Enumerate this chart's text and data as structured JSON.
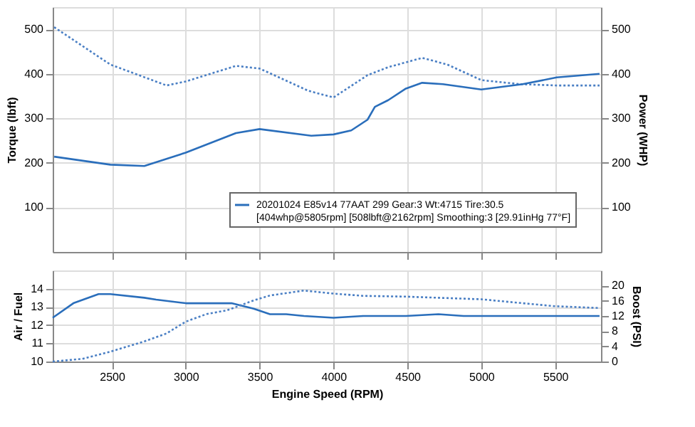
{
  "chart_data": [
    {
      "type": "line",
      "ylabel": "Torque (lbft)",
      "y2label": "Power (WHP)",
      "xlim": [
        2100,
        5810
      ],
      "xticks": [
        2500,
        3000,
        3500,
        4000,
        4500,
        5000,
        5500
      ],
      "ylim": [
        0,
        550
      ],
      "yticks": [
        100,
        200,
        300,
        400,
        500
      ],
      "y2lim": [
        0,
        550
      ],
      "y2ticks": [
        100,
        200,
        300,
        400,
        500
      ],
      "grid": true,
      "legend": "bottom right",
      "tick_labels": "y",
      "series": [
        {
          "color": "#4a7fc4",
          "line_style": "dotted",
          "x": [
            2110,
            2490,
            2870,
            3000,
            3340,
            3500,
            3830,
            4000,
            4230,
            4370,
            4600,
            4770,
            5000,
            5260,
            5510,
            5800
          ],
          "values": [
            505,
            421,
            374,
            383,
            418,
            412,
            362,
            347,
            397,
            415,
            436,
            421,
            386,
            377,
            374,
            374
          ]
        },
        {
          "name": "20201024 E85v14 77AAT 299 Gear:3 Wt:4715 Tire:30.5\n[404whp@5805rpm] [508lbft@2162rpm] Smoothing:3 [29.91inHg 77°F]",
          "color": "#2a6ebb",
          "line_style": "solid",
          "axis": "y2",
          "x": [
            2110,
            2490,
            2720,
            3000,
            3340,
            3500,
            3850,
            4000,
            4120,
            4230,
            4280,
            4370,
            4490,
            4600,
            4740,
            5000,
            5280,
            5510,
            5800
          ],
          "values": [
            214,
            196,
            193,
            223,
            267,
            276,
            261,
            264,
            273,
            297,
            326,
            341,
            367,
            380,
            377,
            365,
            377,
            392,
            400
          ]
        }
      ]
    },
    {
      "type": "line",
      "xlabel": "Engine Speed (RPM)",
      "ylabel": "Air / Fuel",
      "y2label": "Boost (PSI)",
      "xlim": [
        2100,
        5810
      ],
      "xticks": [
        2500,
        3000,
        3500,
        4000,
        4500,
        5000,
        5500
      ],
      "ylim": [
        10,
        15
      ],
      "yticks": [
        10,
        11,
        12,
        13,
        14
      ],
      "y2lim": [
        0,
        24
      ],
      "y2ticks": [
        0,
        4,
        8,
        12,
        16,
        20
      ],
      "grid": true,
      "series": [
        {
          "color": "#2a6ebb",
          "line_style": "solid",
          "x": [
            2100,
            2240,
            2410,
            2490,
            2720,
            2800,
            3000,
            3140,
            3310,
            3460,
            3570,
            3680,
            3800,
            4000,
            4200,
            4490,
            4710,
            4880,
            5000,
            5800
          ],
          "values": [
            12.4,
            13.2,
            13.7,
            13.7,
            13.5,
            13.4,
            13.2,
            13.2,
            13.2,
            12.9,
            12.6,
            12.6,
            12.5,
            12.4,
            12.5,
            12.5,
            12.6,
            12.5,
            12.5,
            12.5
          ]
        },
        {
          "color": "#4a7fc4",
          "line_style": "dotted",
          "axis": "y2",
          "x": [
            2100,
            2300,
            2490,
            2720,
            2870,
            3000,
            3140,
            3280,
            3460,
            3570,
            3800,
            4000,
            4200,
            4490,
            5000,
            5490,
            5800
          ],
          "values": [
            0,
            0.7,
            2.6,
            5.3,
            7.4,
            10.5,
            12.5,
            13.5,
            16.1,
            17.4,
            18.7,
            17.9,
            17.3,
            17.1,
            16.4,
            14.6,
            14.1
          ]
        }
      ]
    }
  ]
}
